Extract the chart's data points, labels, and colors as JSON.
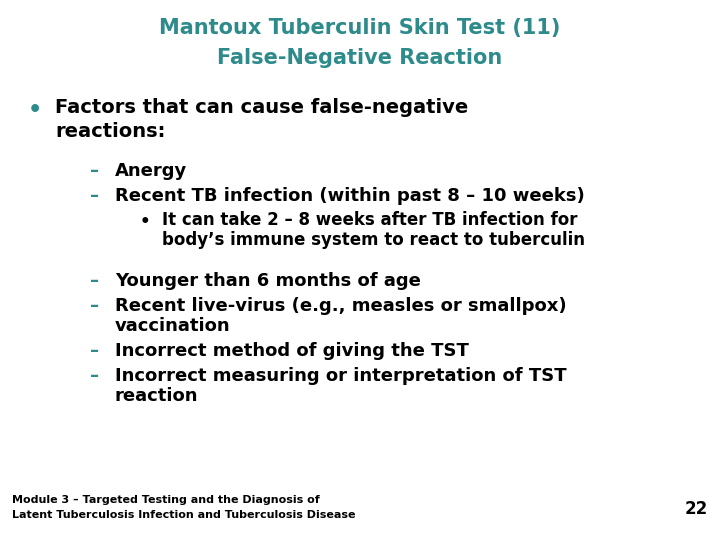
{
  "title_line1": "Mantoux Tuberculin Skin Test (11)",
  "title_line2": "False-Negative Reaction",
  "title_color": "#2E8B8B",
  "bg_color": "#FFFFFF",
  "black": "#000000",
  "teal": "#2E8B8B",
  "bullet1_line1": "Factors that can cause false-negative",
  "bullet1_line2": "reactions:",
  "dash1": "Anergy",
  "dash2": "Recent TB infection (within past 8 – 10 weeks)",
  "sub1_line1": "It can take 2 – 8 weeks after TB infection for",
  "sub1_line2": "body’s immune system to react to tuberculin",
  "dash3": "Younger than 6 months of age",
  "dash4_line1": "Recent live-virus (e.g., measles or smallpox)",
  "dash4_line2": "vaccination",
  "dash5": "Incorrect method of giving the TST",
  "dash6_line1": "Incorrect measuring or interpretation of TST",
  "dash6_line2": "reaction",
  "footer_line1": "Module 3 – Targeted Testing and the Diagnosis of",
  "footer_line2": "Latent Tuberculosis Infection and Tuberculosis Disease",
  "page_number": "22",
  "title_fontsize": 15,
  "bullet_fontsize": 14,
  "dash_fontsize": 13,
  "sub_fontsize": 12,
  "footer_fontsize": 8,
  "page_fontsize": 12
}
